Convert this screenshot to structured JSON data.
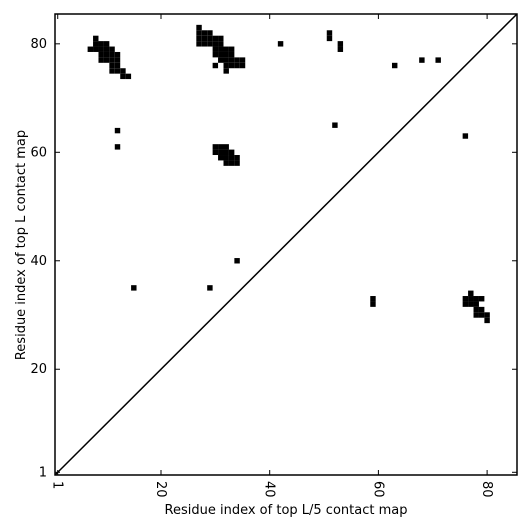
{
  "chart_data": {
    "type": "contact-map",
    "xlabel": "Residue index of top L/5 contact map",
    "ylabel": "Residue index of top L contact map",
    "color": "#000000",
    "xlim": [
      0.5,
      85.5
    ],
    "ylim": [
      0.5,
      85.5
    ],
    "xticks": [
      1,
      20,
      40,
      60,
      80
    ],
    "yticks": [
      1,
      20,
      40,
      60,
      80
    ],
    "x": [
      8,
      8,
      9,
      10,
      7,
      8,
      9,
      10,
      11,
      9,
      10,
      11,
      12,
      9,
      10,
      11,
      12,
      11,
      12,
      11,
      12,
      13,
      13,
      14,
      12,
      12,
      15,
      29,
      34,
      27,
      27,
      28,
      29,
      27,
      28,
      29,
      30,
      31,
      27,
      28,
      29,
      30,
      31,
      42,
      30,
      31,
      32,
      33,
      30,
      31,
      32,
      33,
      31,
      32,
      33,
      34,
      35,
      30,
      32,
      33,
      34,
      35,
      32,
      30,
      31,
      32,
      30,
      31,
      32,
      33,
      31,
      32,
      33,
      34,
      32,
      33,
      34,
      51,
      51,
      53,
      53,
      63,
      68,
      71,
      52,
      76,
      59,
      59,
      77,
      76,
      77,
      78,
      79,
      76,
      77,
      78,
      78,
      79,
      78,
      79,
      80,
      80
    ],
    "y": [
      81,
      80,
      80,
      80,
      79,
      79,
      79,
      79,
      79,
      78,
      78,
      78,
      78,
      77,
      77,
      77,
      77,
      76,
      76,
      75,
      75,
      75,
      74,
      74,
      64,
      61,
      35,
      35,
      40,
      83,
      82,
      82,
      82,
      81,
      81,
      81,
      81,
      81,
      80,
      80,
      80,
      80,
      80,
      80,
      79,
      79,
      79,
      79,
      78,
      78,
      78,
      78,
      77,
      77,
      77,
      77,
      77,
      76,
      76,
      76,
      76,
      76,
      75,
      61,
      61,
      61,
      60,
      60,
      60,
      60,
      59,
      59,
      59,
      59,
      58,
      58,
      58,
      82,
      81,
      80,
      79,
      76,
      77,
      77,
      65,
      63,
      33,
      32,
      34,
      33,
      33,
      33,
      33,
      32,
      32,
      32,
      31,
      31,
      30,
      30,
      30,
      29
    ]
  }
}
